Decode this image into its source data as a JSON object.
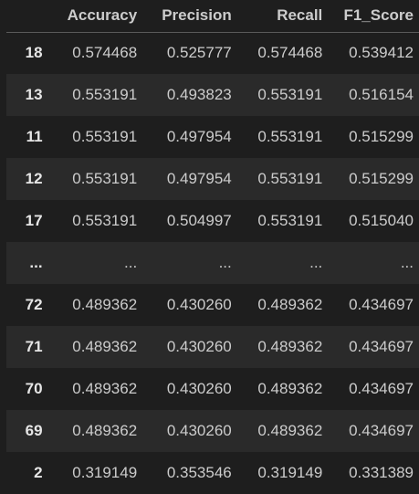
{
  "table": {
    "columns": [
      "",
      "Accuracy",
      "Precision",
      "Recall",
      "F1_Score"
    ],
    "rows": [
      {
        "index": "18",
        "Accuracy": "0.574468",
        "Precision": "0.525777",
        "Recall": "0.574468",
        "F1_Score": "0.539412"
      },
      {
        "index": "13",
        "Accuracy": "0.553191",
        "Precision": "0.493823",
        "Recall": "0.553191",
        "F1_Score": "0.516154"
      },
      {
        "index": "11",
        "Accuracy": "0.553191",
        "Precision": "0.497954",
        "Recall": "0.553191",
        "F1_Score": "0.515299"
      },
      {
        "index": "12",
        "Accuracy": "0.553191",
        "Precision": "0.497954",
        "Recall": "0.553191",
        "F1_Score": "0.515299"
      },
      {
        "index": "17",
        "Accuracy": "0.553191",
        "Precision": "0.504997",
        "Recall": "0.553191",
        "F1_Score": "0.515040"
      },
      {
        "index": "...",
        "Accuracy": "...",
        "Precision": "...",
        "Recall": "...",
        "F1_Score": "..."
      },
      {
        "index": "72",
        "Accuracy": "0.489362",
        "Precision": "0.430260",
        "Recall": "0.489362",
        "F1_Score": "0.434697"
      },
      {
        "index": "71",
        "Accuracy": "0.489362",
        "Precision": "0.430260",
        "Recall": "0.489362",
        "F1_Score": "0.434697"
      },
      {
        "index": "70",
        "Accuracy": "0.489362",
        "Precision": "0.430260",
        "Recall": "0.489362",
        "F1_Score": "0.434697"
      },
      {
        "index": "69",
        "Accuracy": "0.489362",
        "Precision": "0.430260",
        "Recall": "0.489362",
        "F1_Score": "0.434697"
      },
      {
        "index": "2",
        "Accuracy": "0.319149",
        "Precision": "0.353546",
        "Recall": "0.319149",
        "F1_Score": "0.331389"
      }
    ]
  },
  "colors": {
    "background": "#1e1e1e",
    "row_alt": "#2a2a2a",
    "text": "#cccccc"
  }
}
